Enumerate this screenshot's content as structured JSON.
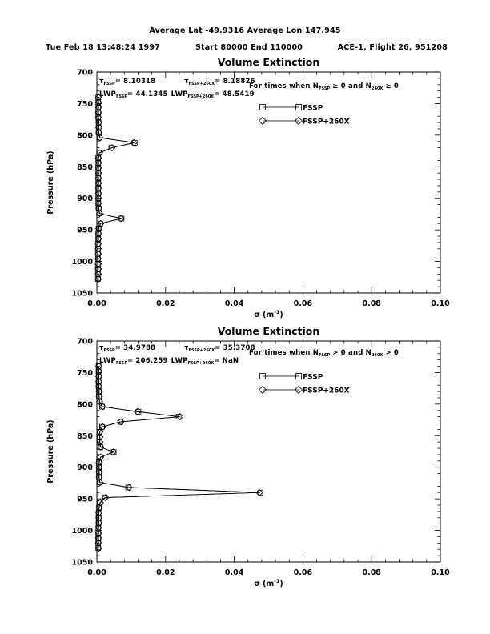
{
  "header": {
    "line1": "Average Lat -49.9316  Average Lon 147.945",
    "date": "Tue Feb 18 13:48:24 1997",
    "range": "Start 80000 End 110000",
    "flight": "ACE-1, Flight 26, 951208"
  },
  "chart_data": [
    {
      "type": "line",
      "title": "Volume Extinction",
      "xlabel_main": "σ (m",
      "xlabel_sup": "-1",
      "xlabel_close": ")",
      "ylabel": "Pressure (hPa)",
      "xlim": [
        0,
        0.1
      ],
      "ylim": [
        700,
        1050
      ],
      "xticks": [
        0,
        0.02,
        0.04,
        0.06,
        0.08,
        0.1
      ],
      "xtick_labels": [
        "0.00",
        "0.02",
        "0.04",
        "0.06",
        "0.08",
        "0.10"
      ],
      "yticks": [
        700,
        750,
        800,
        850,
        900,
        950,
        1000,
        1050
      ],
      "x_minor_step": 0.004,
      "y_minor_step": 10,
      "grid": false,
      "legend_position": "upper-right-inside",
      "legend": [
        {
          "label": "FSSP",
          "marker": "square"
        },
        {
          "label": "FSSP+260X",
          "marker": "diamond"
        }
      ],
      "annotations": {
        "tau1": {
          "sym": "τ",
          "sub": "FSSP",
          "val": "= 8.10318"
        },
        "tau2": {
          "sym": "τ",
          "sub": "FSSP+260X",
          "val": "= 8.18826"
        },
        "lwp1": {
          "sym": "LWP",
          "sub": "FSSP",
          "val": "= 44.1345"
        },
        "lwp2": {
          "sym": "LWP",
          "sub": "FSSP+260X",
          "val": "= 48.5419"
        },
        "cond": {
          "pre": "For times when N",
          "sub1": "FSSP",
          "mid1": " ≥ 0 and N",
          "sub2": "260X",
          "mid2": " ≥ 0"
        }
      },
      "pressure_levels": [
        740,
        748,
        756,
        764,
        772,
        780,
        788,
        796,
        804,
        812,
        820,
        828,
        836,
        844,
        852,
        860,
        868,
        876,
        884,
        892,
        900,
        908,
        916,
        924,
        932,
        940,
        948,
        956,
        964,
        972,
        980,
        988,
        996,
        1004,
        1012,
        1020,
        1028
      ],
      "series": [
        {
          "name": "FSSP",
          "marker": "square",
          "sigma": [
            0.0004,
            0.0004,
            0.0004,
            0.0004,
            0.0004,
            0.0005,
            0.0005,
            0.0005,
            0.0008,
            0.011,
            0.0042,
            0.0007,
            0.0004,
            0.0004,
            0.0004,
            0.0004,
            0.0004,
            0.0004,
            0.0004,
            0.0004,
            0.0004,
            0.0004,
            0.0005,
            0.0007,
            0.0072,
            0.001,
            0.0005,
            0.0004,
            0.0004,
            0.0003,
            0.0003,
            0.0003,
            0.0003,
            0.0003,
            0.0003,
            0.0003,
            0.0003
          ]
        },
        {
          "name": "FSSP+260X",
          "marker": "diamond",
          "sigma": [
            0.0005,
            0.0005,
            0.0005,
            0.0005,
            0.0005,
            0.0006,
            0.0006,
            0.0006,
            0.0009,
            0.0107,
            0.0044,
            0.0008,
            0.0005,
            0.0005,
            0.0005,
            0.0005,
            0.0005,
            0.0005,
            0.0005,
            0.0005,
            0.0005,
            0.0005,
            0.0006,
            0.0008,
            0.007,
            0.0011,
            0.0006,
            0.0005,
            0.0005,
            0.0004,
            0.0004,
            0.0004,
            0.0004,
            0.0004,
            0.0004,
            0.0004,
            0.0004
          ]
        }
      ]
    },
    {
      "type": "line",
      "title": "Volume Extinction",
      "xlabel_main": "σ (m",
      "xlabel_sup": "-1",
      "xlabel_close": ")",
      "ylabel": "Pressure (hPa)",
      "xlim": [
        0,
        0.1
      ],
      "ylim": [
        700,
        1050
      ],
      "xticks": [
        0,
        0.02,
        0.04,
        0.06,
        0.08,
        0.1
      ],
      "xtick_labels": [
        "0.00",
        "0.02",
        "0.04",
        "0.06",
        "0.08",
        "0.10"
      ],
      "yticks": [
        700,
        750,
        800,
        850,
        900,
        950,
        1000,
        1050
      ],
      "x_minor_step": 0.004,
      "y_minor_step": 10,
      "grid": false,
      "legend_position": "upper-right-inside",
      "legend": [
        {
          "label": "FSSP",
          "marker": "square"
        },
        {
          "label": "FSSP+260X",
          "marker": "diamond"
        }
      ],
      "annotations": {
        "tau1": {
          "sym": "τ",
          "sub": "FSSP",
          "val": "= 34.9788"
        },
        "tau2": {
          "sym": "τ",
          "sub": "FSSP+260X",
          "val": "= 35.3708"
        },
        "lwp1": {
          "sym": "LWP",
          "sub": "FSSP",
          "val": "= 206.259"
        },
        "lwp2": {
          "sym": "LWP",
          "sub": "FSSP+260X",
          "val": "= NaN"
        },
        "cond": {
          "pre": "For times when N",
          "sub1": "FSSP",
          "mid1": " > 0 and N",
          "sub2": "260X",
          "mid2": " > 0"
        }
      },
      "pressure_levels": [
        740,
        748,
        756,
        764,
        772,
        780,
        788,
        796,
        804,
        812,
        820,
        828,
        836,
        844,
        852,
        860,
        868,
        876,
        884,
        892,
        900,
        908,
        916,
        924,
        932,
        940,
        948,
        956,
        964,
        972,
        980,
        988,
        996,
        1004,
        1012,
        1020,
        1028
      ],
      "series": [
        {
          "name": "FSSP",
          "marker": "square",
          "sigma": [
            0.0005,
            0.0005,
            0.0005,
            0.0005,
            0.0005,
            0.0006,
            0.0006,
            0.0007,
            0.0015,
            0.0121,
            0.0238,
            0.0068,
            0.0015,
            0.0008,
            0.0008,
            0.0008,
            0.001,
            0.0049,
            0.001,
            0.0006,
            0.0006,
            0.0006,
            0.0006,
            0.0008,
            0.0091,
            0.0476,
            0.0023,
            0.0009,
            0.0006,
            0.0005,
            0.0005,
            0.0005,
            0.0004,
            0.0004,
            0.0004,
            0.0004,
            0.0004
          ]
        },
        {
          "name": "FSSP+260X",
          "marker": "diamond",
          "sigma": [
            0.0006,
            0.0006,
            0.0006,
            0.0006,
            0.0006,
            0.0007,
            0.0007,
            0.0008,
            0.0017,
            0.0118,
            0.0242,
            0.007,
            0.0017,
            0.0009,
            0.0009,
            0.0009,
            0.0011,
            0.0047,
            0.0011,
            0.0007,
            0.0007,
            0.0007,
            0.0007,
            0.0009,
            0.0094,
            0.0473,
            0.0025,
            0.001,
            0.0007,
            0.0006,
            0.0006,
            0.0006,
            0.0005,
            0.0005,
            0.0005,
            0.0005,
            0.0005
          ]
        }
      ]
    }
  ]
}
